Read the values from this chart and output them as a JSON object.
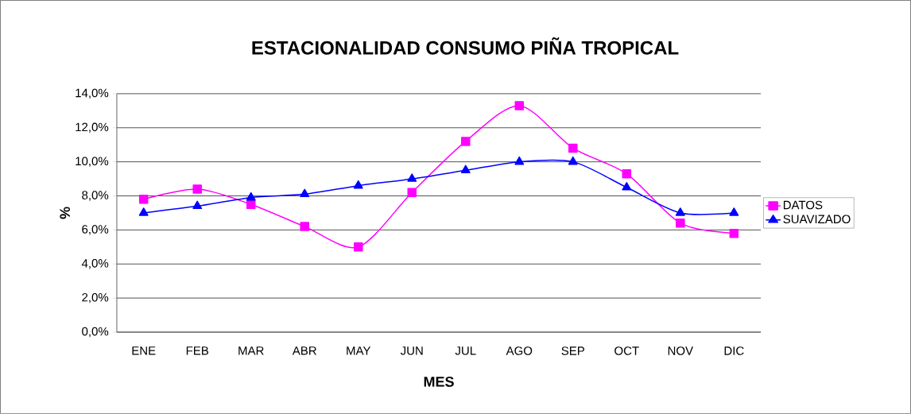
{
  "chart_data": {
    "type": "line",
    "title": "ESTACIONALIDAD CONSUMO PIÑA TROPICAL",
    "xlabel": "MES",
    "ylabel": "%",
    "categories": [
      "ENE",
      "FEB",
      "MAR",
      "ABR",
      "MAY",
      "JUN",
      "JUL",
      "AGO",
      "SEP",
      "OCT",
      "NOV",
      "DIC"
    ],
    "series": [
      {
        "name": "DATOS",
        "color": "#ff00ff",
        "marker": "square",
        "values": [
          7.8,
          8.4,
          7.5,
          6.2,
          5.0,
          8.2,
          11.2,
          13.3,
          10.8,
          9.3,
          6.4,
          5.8
        ]
      },
      {
        "name": "SUAVIZADO",
        "color": "#0000ff",
        "marker": "triangle",
        "values": [
          7.0,
          7.4,
          7.9,
          8.1,
          8.6,
          9.0,
          9.5,
          10.0,
          10.0,
          8.5,
          7.0,
          7.0
        ]
      }
    ],
    "ylim": [
      0,
      14
    ],
    "yticks": [
      {
        "value": 0,
        "label": "0,0%"
      },
      {
        "value": 2,
        "label": "2,0%"
      },
      {
        "value": 4,
        "label": "4,0%"
      },
      {
        "value": 6,
        "label": "6,0%"
      },
      {
        "value": 8,
        "label": "8,0%"
      },
      {
        "value": 10,
        "label": "10,0%"
      },
      {
        "value": 12,
        "label": "12,0%"
      },
      {
        "value": 14,
        "label": "14,0%"
      }
    ],
    "grid": "y",
    "legend": "right",
    "line_style": "solid"
  }
}
